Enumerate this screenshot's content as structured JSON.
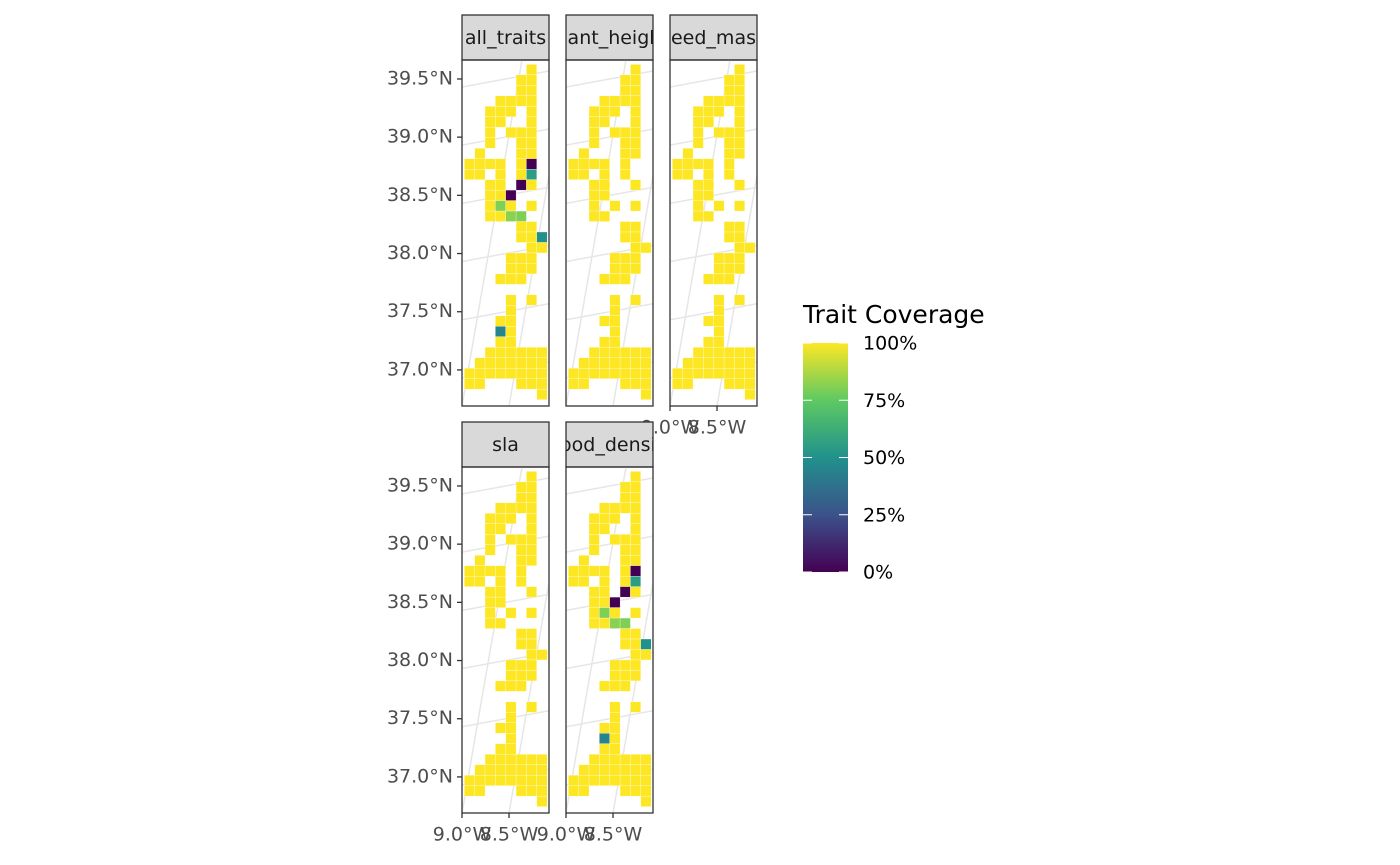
{
  "chart_data": {
    "type": "tile-map",
    "legend_title": "Trait Coverage",
    "legend_lim": [
      0,
      100
    ],
    "legend_ticks": [
      {
        "value": 0,
        "label": "0%"
      },
      {
        "value": 25,
        "label": "25%"
      },
      {
        "value": 50,
        "label": "50%"
      },
      {
        "value": 75,
        "label": "75%"
      },
      {
        "value": 100,
        "label": "100%"
      }
    ],
    "colorscale": [
      "#440154",
      "#3b528b",
      "#21918c",
      "#5ec962",
      "#fde725"
    ],
    "xlim": [
      -9.0,
      -8.075
    ],
    "ylim": [
      36.69,
      39.663
    ],
    "xticks": [
      {
        "value": -9.0,
        "label": "9.0°W"
      },
      {
        "value": -8.5,
        "label": "8.5°W"
      }
    ],
    "yticks": [
      {
        "value": 37.0,
        "label": "37.0°N"
      },
      {
        "value": 37.5,
        "label": "37.5°N"
      },
      {
        "value": 38.0,
        "label": "38.0°N"
      },
      {
        "value": 38.5,
        "label": "38.5°N"
      },
      {
        "value": 39.0,
        "label": "39.0°N"
      },
      {
        "value": 39.5,
        "label": "39.5°N"
      }
    ],
    "grid": true,
    "lon": [
      -8.26,
      -8.37,
      -8.26,
      -8.37,
      -8.26,
      -8.59,
      -8.48,
      -8.37,
      -8.26,
      -8.7,
      -8.59,
      -8.48,
      -8.26,
      -8.7,
      -8.59,
      -8.26,
      -8.7,
      -8.48,
      -8.37,
      -8.26,
      -8.7,
      -8.37,
      -8.26,
      -8.81,
      -8.37,
      -8.26,
      -8.92,
      -8.81,
      -8.7,
      -8.59,
      -8.37,
      -8.26,
      -8.92,
      -8.81,
      -8.59,
      -8.37,
      -8.26,
      -8.7,
      -8.59,
      -8.37,
      -8.26,
      -8.7,
      -8.59,
      -8.48,
      -8.7,
      -8.59,
      -8.48,
      -8.26,
      -8.7,
      -8.59,
      -8.48,
      -8.37,
      -8.37,
      -8.26,
      -8.37,
      -8.26,
      -8.15,
      -8.26,
      -8.15,
      -8.48,
      -8.37,
      -8.26,
      -8.48,
      -8.37,
      -8.26,
      -8.59,
      -8.48,
      -8.37,
      -8.48,
      -8.26,
      -8.48,
      -8.59,
      -8.48,
      -8.59,
      -8.48,
      -8.59,
      -8.48,
      -8.7,
      -8.59,
      -8.48,
      -8.37,
      -8.26,
      -8.15,
      -8.81,
      -8.7,
      -8.59,
      -8.48,
      -8.37,
      -8.26,
      -8.15,
      -8.92,
      -8.81,
      -8.7,
      -8.59,
      -8.48,
      -8.37,
      -8.26,
      -8.15,
      -8.92,
      -8.81,
      -8.37,
      -8.26,
      -8.15,
      -8.15
    ],
    "lat": [
      39.58,
      39.49,
      39.49,
      39.4,
      39.4,
      39.31,
      39.31,
      39.31,
      39.31,
      39.22,
      39.22,
      39.22,
      39.22,
      39.13,
      39.13,
      39.13,
      39.04,
      39.04,
      39.04,
      39.04,
      38.95,
      38.95,
      38.95,
      38.86,
      38.86,
      38.86,
      38.77,
      38.77,
      38.77,
      38.77,
      38.77,
      38.77,
      38.68,
      38.68,
      38.68,
      38.68,
      38.68,
      38.59,
      38.59,
      38.59,
      38.59,
      38.5,
      38.5,
      38.5,
      38.41,
      38.41,
      38.41,
      38.41,
      38.32,
      38.32,
      38.32,
      38.32,
      38.23,
      38.23,
      38.14,
      38.14,
      38.14,
      38.05,
      38.05,
      37.96,
      37.96,
      37.96,
      37.87,
      37.87,
      37.87,
      37.78,
      37.78,
      37.78,
      37.6,
      37.6,
      37.51,
      37.42,
      37.42,
      37.33,
      37.33,
      37.24,
      37.24,
      37.15,
      37.15,
      37.15,
      37.15,
      37.15,
      37.15,
      37.06,
      37.06,
      37.06,
      37.06,
      37.06,
      37.06,
      37.06,
      36.97,
      36.97,
      36.97,
      36.97,
      36.97,
      36.97,
      36.97,
      36.97,
      36.88,
      36.88,
      36.88,
      36.88,
      36.88,
      36.79
    ],
    "facets": [
      {
        "label": "all_traits",
        "values": [
          100,
          100,
          100,
          100,
          100,
          100,
          100,
          100,
          100,
          100,
          100,
          100,
          100,
          100,
          100,
          100,
          100,
          100,
          100,
          100,
          100,
          100,
          100,
          100,
          100,
          100,
          100,
          100,
          100,
          100,
          100,
          0,
          100,
          100,
          100,
          100,
          55,
          100,
          100,
          0,
          100,
          100,
          100,
          0,
          100,
          80,
          100,
          100,
          100,
          100,
          82,
          80,
          100,
          100,
          100,
          100,
          50,
          100,
          100,
          100,
          100,
          100,
          100,
          100,
          100,
          100,
          100,
          100,
          100,
          100,
          100,
          100,
          100,
          45,
          100,
          100,
          100,
          100,
          100,
          100,
          100,
          100,
          100,
          100,
          100,
          100,
          100,
          100,
          100,
          100,
          100,
          100,
          100,
          100,
          100,
          100,
          100,
          100,
          100,
          100,
          100,
          100,
          100,
          100
        ]
      },
      {
        "label": "plant_height",
        "values": [
          100,
          100,
          100,
          100,
          100,
          100,
          100,
          100,
          100,
          100,
          100,
          100,
          100,
          100,
          100,
          100,
          100,
          100,
          100,
          100,
          100,
          100,
          100,
          100,
          100,
          100,
          100,
          100,
          100,
          100,
          100,
          null,
          100,
          100,
          100,
          100,
          null,
          100,
          100,
          null,
          100,
          100,
          100,
          null,
          100,
          null,
          100,
          100,
          100,
          100,
          null,
          null,
          100,
          100,
          100,
          100,
          null,
          100,
          100,
          100,
          100,
          100,
          100,
          100,
          100,
          100,
          100,
          100,
          100,
          100,
          100,
          100,
          100,
          null,
          100,
          100,
          100,
          100,
          100,
          100,
          100,
          100,
          100,
          100,
          100,
          100,
          100,
          100,
          100,
          100,
          100,
          100,
          100,
          100,
          100,
          100,
          100,
          100,
          100,
          100,
          100,
          100,
          100,
          100
        ]
      },
      {
        "label": "seed_mass",
        "values": [
          100,
          100,
          100,
          100,
          100,
          100,
          100,
          100,
          100,
          100,
          100,
          100,
          100,
          100,
          100,
          100,
          100,
          100,
          100,
          100,
          100,
          100,
          100,
          100,
          100,
          100,
          100,
          100,
          100,
          100,
          100,
          null,
          100,
          100,
          100,
          100,
          null,
          100,
          100,
          null,
          100,
          100,
          100,
          null,
          100,
          null,
          100,
          100,
          100,
          100,
          null,
          null,
          100,
          100,
          100,
          100,
          null,
          100,
          100,
          100,
          100,
          100,
          100,
          100,
          100,
          100,
          100,
          100,
          100,
          100,
          100,
          100,
          100,
          null,
          100,
          100,
          100,
          100,
          100,
          100,
          100,
          100,
          100,
          100,
          100,
          100,
          100,
          100,
          100,
          100,
          100,
          100,
          100,
          100,
          100,
          100,
          100,
          100,
          100,
          100,
          100,
          100,
          100,
          100
        ]
      },
      {
        "label": "sla",
        "values": [
          100,
          100,
          100,
          100,
          100,
          100,
          100,
          100,
          100,
          100,
          100,
          100,
          100,
          100,
          100,
          100,
          100,
          100,
          100,
          100,
          100,
          100,
          100,
          100,
          100,
          100,
          100,
          100,
          100,
          100,
          100,
          null,
          100,
          100,
          100,
          100,
          null,
          100,
          100,
          null,
          100,
          100,
          100,
          null,
          100,
          null,
          100,
          100,
          100,
          100,
          null,
          null,
          100,
          100,
          100,
          100,
          null,
          100,
          100,
          100,
          100,
          100,
          100,
          100,
          100,
          100,
          100,
          100,
          100,
          100,
          100,
          100,
          100,
          null,
          100,
          100,
          100,
          100,
          100,
          100,
          100,
          100,
          100,
          100,
          100,
          100,
          100,
          100,
          100,
          100,
          100,
          100,
          100,
          100,
          100,
          100,
          100,
          100,
          100,
          100,
          100,
          100,
          100,
          100
        ]
      },
      {
        "label": "wood_density",
        "values": [
          100,
          100,
          100,
          100,
          100,
          100,
          100,
          100,
          100,
          100,
          100,
          100,
          100,
          100,
          100,
          100,
          100,
          100,
          100,
          100,
          100,
          100,
          100,
          100,
          100,
          100,
          100,
          100,
          100,
          100,
          100,
          0,
          100,
          100,
          100,
          100,
          55,
          100,
          100,
          0,
          100,
          100,
          100,
          0,
          100,
          80,
          100,
          100,
          100,
          100,
          82,
          80,
          100,
          100,
          100,
          100,
          50,
          100,
          100,
          100,
          100,
          100,
          100,
          100,
          100,
          100,
          100,
          100,
          100,
          100,
          100,
          100,
          100,
          45,
          100,
          100,
          100,
          100,
          100,
          100,
          100,
          100,
          100,
          100,
          100,
          100,
          100,
          100,
          100,
          100,
          100,
          100,
          100,
          100,
          100,
          100,
          100,
          100,
          100,
          100,
          100,
          100,
          100,
          100
        ]
      }
    ]
  }
}
